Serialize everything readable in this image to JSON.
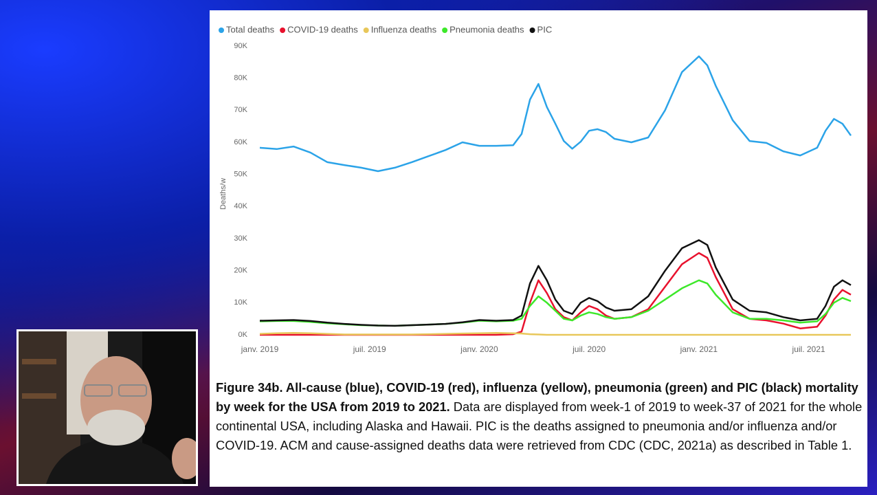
{
  "chart_data": {
    "type": "line",
    "y_label": "Deaths/w",
    "caption_title": "Figure 34b. All-cause (blue), COVID-19 (red), influenza (yellow), pneumonia (green) and PIC (black) mortality by week for the USA from 2019 to 2021.",
    "caption_text": "Data are displayed from week-1 of 2019 to week-37 of 2021 for the whole continental USA, including Alaska and Hawaii. PIC is the deaths assigned to pneumonia and/or influenza and/or COVID-19. ACM and cause-assigned deaths data were retrieved from CDC (CDC, 2021a) as described in Table 1.",
    "x": [
      1,
      5,
      9,
      13,
      17,
      21,
      25,
      29,
      33,
      37,
      41,
      45,
      49,
      53,
      57,
      61,
      63,
      65,
      67,
      69,
      71,
      73,
      75,
      77,
      79,
      81,
      83,
      85,
      89,
      93,
      97,
      101,
      105,
      107,
      109,
      113,
      117,
      121,
      125,
      129,
      133,
      135,
      137,
      139,
      141
    ],
    "xlim": [
      1,
      141
    ],
    "xticks": [
      {
        "value": 1,
        "label": "janv. 2019"
      },
      {
        "value": 27,
        "label": "juil. 2019"
      },
      {
        "value": 53,
        "label": "janv. 2020"
      },
      {
        "value": 79,
        "label": "juil. 2020"
      },
      {
        "value": 105,
        "label": "janv. 2021"
      },
      {
        "value": 131,
        "label": "juil. 2021"
      }
    ],
    "ylim": [
      0,
      90000
    ],
    "yticks": [
      {
        "value": 0,
        "label": "0K"
      },
      {
        "value": 10000,
        "label": "10K"
      },
      {
        "value": 20000,
        "label": "20K"
      },
      {
        "value": 30000,
        "label": "30K"
      },
      {
        "value": 40000,
        "label": "40K"
      },
      {
        "value": 50000,
        "label": "50K"
      },
      {
        "value": 60000,
        "label": "60K"
      },
      {
        "value": 70000,
        "label": "70K"
      },
      {
        "value": 80000,
        "label": "80K"
      },
      {
        "value": 90000,
        "label": "90K"
      }
    ],
    "legend": "top-left",
    "series": [
      {
        "name": "Total deaths",
        "color": "#2ba3e8",
        "values": [
          58300,
          57900,
          58700,
          56800,
          53800,
          52900,
          52100,
          51000,
          52100,
          53800,
          55700,
          57600,
          60000,
          58900,
          58900,
          59100,
          62600,
          73300,
          78200,
          71000,
          65800,
          60400,
          58000,
          60200,
          63600,
          64100,
          63200,
          61100,
          60000,
          61500,
          70000,
          81900,
          86800,
          84000,
          77600,
          66900,
          60400,
          59800,
          57200,
          55900,
          58300,
          63600,
          67300,
          65800,
          62100
        ]
      },
      {
        "name": "COVID-19 deaths",
        "color": "#e8112d",
        "values": [
          0,
          0,
          0,
          0,
          0,
          0,
          0,
          0,
          0,
          0,
          0,
          0,
          0,
          0,
          0,
          200,
          1000,
          10000,
          17000,
          13000,
          8000,
          5500,
          4500,
          7000,
          9000,
          8000,
          6000,
          5000,
          5500,
          8000,
          15000,
          22000,
          25500,
          24000,
          18000,
          8000,
          5000,
          4500,
          3500,
          2000,
          2500,
          6000,
          11000,
          14000,
          12500
        ]
      },
      {
        "name": "Influenza deaths",
        "color": "#e8c75a",
        "values": [
          300,
          500,
          600,
          500,
          300,
          100,
          100,
          100,
          100,
          100,
          200,
          300,
          400,
          500,
          600,
          500,
          400,
          200,
          100,
          0,
          0,
          0,
          0,
          0,
          0,
          0,
          0,
          0,
          0,
          0,
          0,
          0,
          0,
          0,
          0,
          0,
          0,
          0,
          0,
          0,
          0,
          0,
          0,
          0,
          0
        ]
      },
      {
        "name": "Pneumonia deaths",
        "color": "#3de82a",
        "values": [
          4200,
          4300,
          4300,
          4000,
          3600,
          3300,
          3000,
          2900,
          2800,
          3000,
          3200,
          3400,
          3800,
          4400,
          4200,
          4400,
          5000,
          9000,
          12000,
          10000,
          7500,
          5000,
          4500,
          6000,
          7000,
          6500,
          5500,
          5000,
          5500,
          7500,
          11000,
          14500,
          17000,
          16000,
          12500,
          7000,
          5000,
          5000,
          4500,
          3800,
          4200,
          6500,
          10000,
          11500,
          10500
        ]
      },
      {
        "name": "PIC",
        "color": "#111111",
        "values": [
          4400,
          4500,
          4600,
          4300,
          3800,
          3400,
          3100,
          2900,
          2800,
          3000,
          3200,
          3400,
          3900,
          4600,
          4400,
          4600,
          6000,
          16000,
          21500,
          17000,
          11000,
          7500,
          6500,
          10000,
          11500,
          10500,
          8500,
          7500,
          8000,
          12000,
          20000,
          27000,
          29500,
          28000,
          21000,
          11000,
          7500,
          7000,
          5500,
          4500,
          5000,
          9000,
          15000,
          17000,
          15500
        ]
      }
    ]
  }
}
